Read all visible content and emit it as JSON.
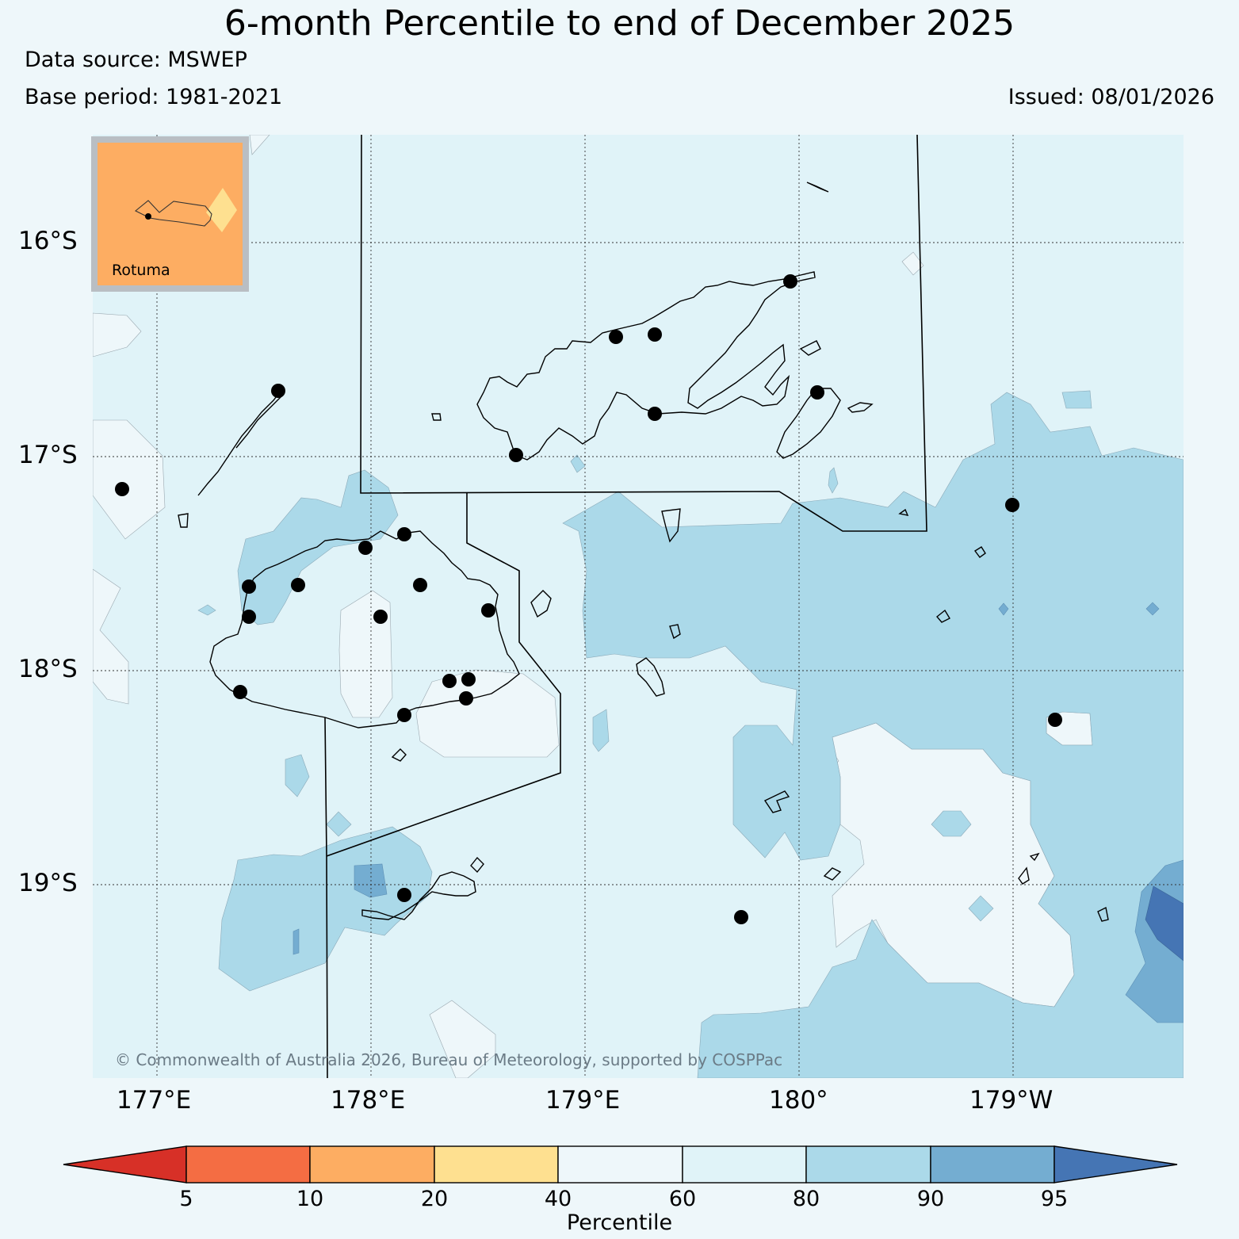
{
  "title": "6-month Percentile to end of December 2025",
  "data_source": "Data source: MSWEP",
  "base_period": "Base period: 1981-2021",
  "issued": "Issued: 08/01/2026",
  "copyright": "© Commonwealth of Australia 2026, Bureau of Meteorology, supported by COSPPac",
  "latitude_labels": [
    "16°S",
    "17°S",
    "18°S",
    "19°S"
  ],
  "longitude_labels": [
    "177°E",
    "178°E",
    "179°E",
    "180°",
    "179°W"
  ],
  "inset": {
    "label": "Rotuma",
    "fill_color": "#fdad62"
  },
  "colorbar": {
    "label": "Percentile",
    "ticks": [
      "5",
      "10",
      "20",
      "40",
      "60",
      "80",
      "90",
      "95"
    ],
    "colors": [
      "#d73027",
      "#f46d43",
      "#fdad62",
      "#fee090",
      "#eef7fa",
      "#e0f3f8",
      "#abd9e9",
      "#74add1",
      "#4575b4"
    ]
  },
  "legend_colors": {
    "class_60_80": "#e0f3f8",
    "class_40_60": "#eef7fa",
    "class_80_90": "#abd9e9",
    "class_90_95": "#74add1",
    "class_95_plus": "#4575b4"
  }
}
